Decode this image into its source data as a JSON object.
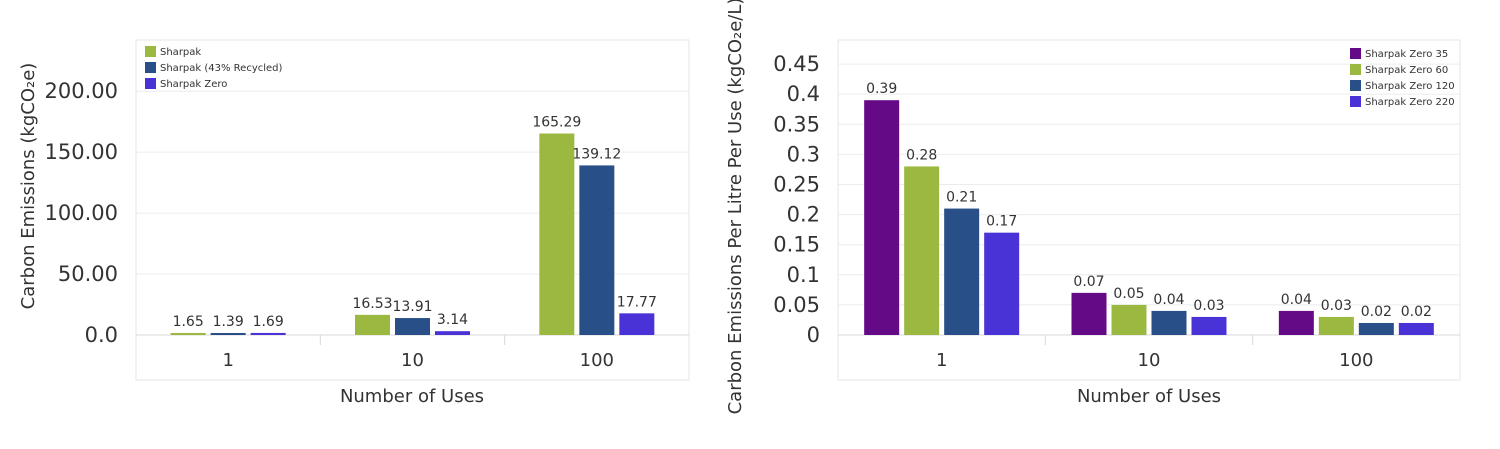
{
  "chart_data": [
    {
      "type": "bar",
      "categories": [
        "1",
        "10",
        "100"
      ],
      "series": [
        {
          "name": "Sharpak",
          "color": "#9BB940",
          "values": [
            1.65,
            16.53,
            165.29
          ]
        },
        {
          "name": "Sharpak (43% Recycled)",
          "color": "#284F87",
          "values": [
            1.39,
            13.91,
            139.12
          ]
        },
        {
          "name": "Sharpak Zero",
          "color": "#4A33D6",
          "values": [
            1.69,
            3.14,
            17.77
          ]
        }
      ],
      "data_labels": [
        [
          "1.65",
          "16.53",
          "165.29"
        ],
        [
          "1.39",
          "13.91",
          "139.12"
        ],
        [
          "1.69",
          "3.14",
          "17.77"
        ]
      ],
      "xlabel": "Number of Uses",
      "ylabel": "Carbon Emissions (kgCO₂e)",
      "ylim": [
        0,
        242
      ],
      "yticks": [
        0,
        50,
        100,
        150,
        200
      ],
      "ytick_labels": [
        "0.0",
        "50.00",
        "100.00",
        "150.00",
        "200.00"
      ],
      "grid": "y",
      "legend": "top-left"
    },
    {
      "type": "bar",
      "categories": [
        "1",
        "10",
        "100"
      ],
      "series": [
        {
          "name": "Sharpak Zero 35",
          "color": "#650A87",
          "values": [
            0.39,
            0.07,
            0.04
          ]
        },
        {
          "name": "Sharpak Zero 60",
          "color": "#9BB940",
          "values": [
            0.28,
            0.05,
            0.03
          ]
        },
        {
          "name": "Sharpak Zero 120",
          "color": "#284F87",
          "values": [
            0.21,
            0.04,
            0.02
          ]
        },
        {
          "name": "Sharpak Zero 220",
          "color": "#4A33D6",
          "values": [
            0.17,
            0.03,
            0.02
          ]
        }
      ],
      "data_labels": [
        [
          "0.39",
          "0.07",
          "0.04"
        ],
        [
          "0.28",
          "0.05",
          "0.03"
        ],
        [
          "0.21",
          "0.04",
          "0.02"
        ],
        [
          "0.17",
          "0.03",
          "0.02"
        ]
      ],
      "xlabel": "Number of Uses",
      "ylabel": "Carbon Emissions Per Litre Per Use (kgCO₂e/L)",
      "ylim": [
        0,
        0.49
      ],
      "yticks": [
        0,
        0.05,
        0.1,
        0.15,
        0.2,
        0.25,
        0.3,
        0.35,
        0.4,
        0.45
      ],
      "ytick_labels": [
        "0",
        "0.05",
        "0.1",
        "0.15",
        "0.2",
        "0.25",
        "0.3",
        "0.35",
        "0.4",
        "0.45"
      ],
      "grid": "y",
      "legend": "top-right"
    }
  ]
}
